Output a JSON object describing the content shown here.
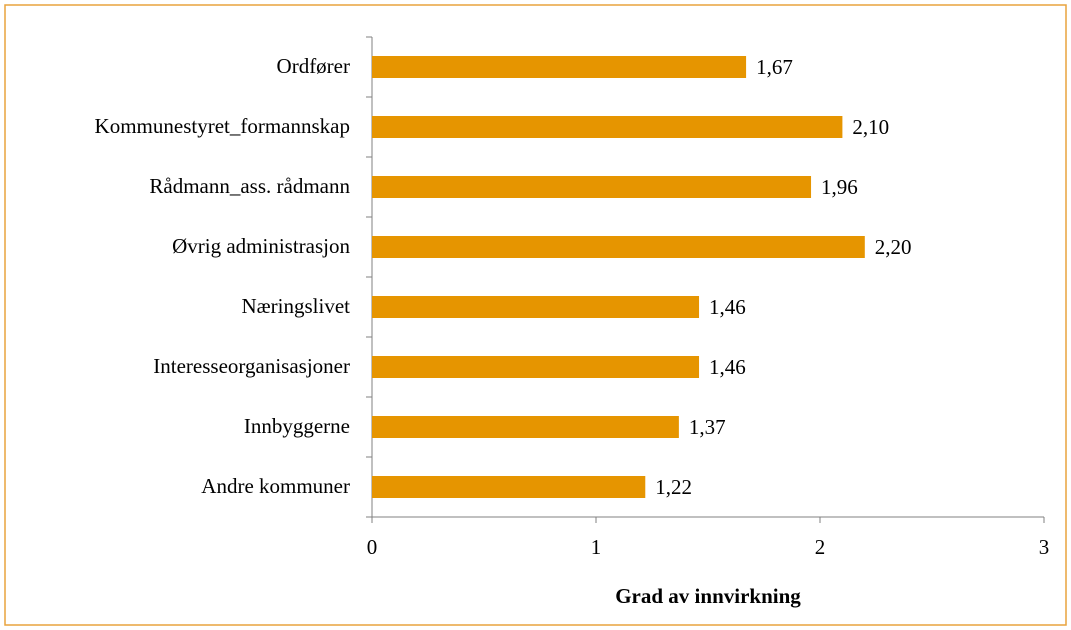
{
  "chart_data": {
    "type": "bar",
    "orientation": "horizontal",
    "x_label": "Grad av innvirkning",
    "categories": [
      "Ordfører",
      "Kommunestyret_formannskap",
      "Rådmann_ass. rådmann",
      "Øvrig administrasjon",
      "Næringslivet",
      "Interesseorganisasjoner",
      "Innbyggerne",
      "Andre kommuner"
    ],
    "values": [
      1.67,
      2.1,
      1.96,
      2.2,
      1.46,
      1.46,
      1.37,
      1.22
    ],
    "value_labels": [
      "1,67",
      "2,10",
      "1,96",
      "2,20",
      "1,46",
      "1,46",
      "1,37",
      "1,22"
    ],
    "color": "#e69500",
    "xlim": [
      0,
      3
    ],
    "xticks": [
      0,
      1,
      2,
      3
    ],
    "grid": false
  }
}
